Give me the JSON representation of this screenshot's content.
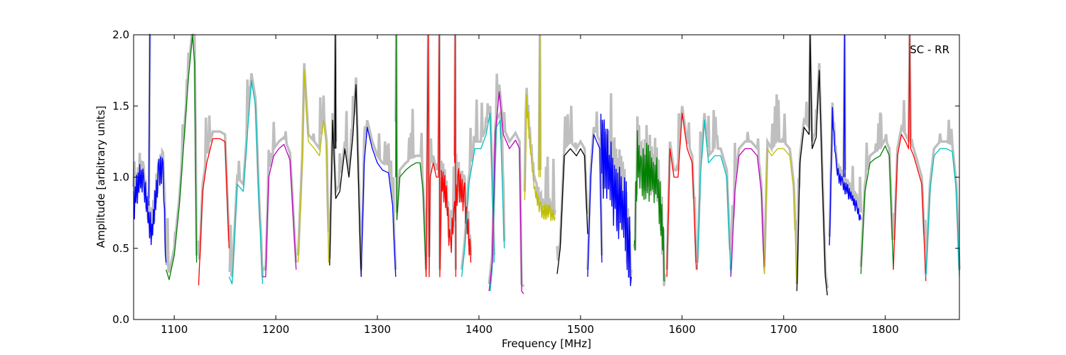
{
  "chart_data": {
    "type": "line",
    "annotation": "SC - RR",
    "xlabel": "Frequency [MHz]",
    "ylabel": "Amplitude [arbitrary units]",
    "xlim": [
      1060,
      1873
    ],
    "ylim": [
      0.0,
      2.0
    ],
    "grid": false,
    "x_ticks": [
      1100,
      1200,
      1300,
      1400,
      1500,
      1600,
      1700,
      1800
    ],
    "x_tick_labels": [
      "1100",
      "1200",
      "1300",
      "1400",
      "1500",
      "1600",
      "1700",
      "1800"
    ],
    "y_ticks": [
      0.0,
      0.5,
      1.0,
      1.5,
      2.0
    ],
    "y_tick_labels": [
      "0.0",
      "0.5",
      "1.0",
      "1.5",
      "2.0"
    ],
    "colors": {
      "blue": "#0000ff",
      "green": "#008000",
      "red": "#ff0000",
      "cyan": "#00bfbf",
      "magenta": "#bf00bf",
      "yellow": "#bfbf00",
      "black": "#000000",
      "gray": "#bfbfbf"
    },
    "series": [
      {
        "color": "blue",
        "noise": 0.12,
        "x": [
          1060,
          1063,
          1066,
          1070,
          1075,
          1078,
          1081,
          1085,
          1089,
          1092
        ],
        "y": [
          0.8,
          0.9,
          1.03,
          0.95,
          0.7,
          0.62,
          0.8,
          1.02,
          1.05,
          0.4
        ]
      },
      {
        "color": "blue",
        "x": [
          1075,
          1076,
          1076.5
        ],
        "y": [
          0.8,
          2.0,
          2.0
        ]
      },
      {
        "color": "green",
        "x": [
          1092,
          1095,
          1100,
          1105,
          1110,
          1114,
          1118,
          1120,
          1122
        ],
        "y": [
          0.35,
          0.28,
          0.45,
          0.8,
          1.3,
          1.7,
          2.0,
          1.8,
          0.4
        ]
      },
      {
        "color": "red",
        "x": [
          1124,
          1128,
          1132,
          1138,
          1145,
          1150,
          1154
        ],
        "y": [
          0.24,
          0.9,
          1.1,
          1.27,
          1.27,
          1.25,
          0.5
        ]
      },
      {
        "color": "cyan",
        "x": [
          1154,
          1157,
          1162,
          1168,
          1172,
          1176,
          1180,
          1183,
          1187
        ],
        "y": [
          0.3,
          0.25,
          0.95,
          0.9,
          1.3,
          1.68,
          1.5,
          0.9,
          0.25
        ]
      },
      {
        "color": "magenta",
        "x": [
          1187,
          1190,
          1193,
          1198,
          1203,
          1208,
          1214,
          1220
        ],
        "y": [
          0.3,
          0.3,
          1.0,
          1.15,
          1.2,
          1.23,
          1.12,
          0.35
        ]
      },
      {
        "color": "yellow",
        "x": [
          1222,
          1226,
          1228,
          1232,
          1238,
          1243,
          1247,
          1250,
          1252
        ],
        "y": [
          0.4,
          1.1,
          1.75,
          1.25,
          1.2,
          1.15,
          1.4,
          1.2,
          0.4
        ]
      },
      {
        "color": "black",
        "x": [
          1253,
          1256,
          1259,
          1263,
          1268,
          1272,
          1276,
          1279,
          1282,
          1284
        ],
        "y": [
          0.38,
          1.4,
          0.85,
          0.9,
          1.2,
          1.0,
          1.3,
          1.65,
          0.8,
          0.3
        ]
      },
      {
        "color": "black",
        "x": [
          1258,
          1258.6,
          1259.2
        ],
        "y": [
          1.2,
          2.0,
          1.2
        ]
      },
      {
        "color": "blue",
        "x": [
          1284,
          1287,
          1290,
          1295,
          1300,
          1305,
          1311,
          1315,
          1318
        ],
        "y": [
          0.3,
          1.1,
          1.35,
          1.2,
          1.1,
          1.05,
          1.03,
          0.8,
          0.3
        ]
      },
      {
        "color": "green",
        "x": [
          1318,
          1318.6,
          1319.2,
          1322,
          1328,
          1333,
          1338,
          1342,
          1345,
          1348
        ],
        "y": [
          1.0,
          2.0,
          0.7,
          1.0,
          1.05,
          1.08,
          1.1,
          1.1,
          0.9,
          0.3
        ]
      },
      {
        "color": "red",
        "x": [
          1348,
          1350,
          1351,
          1352,
          1355,
          1358,
          1360,
          1361,
          1361.5,
          1363
        ],
        "y": [
          0.3,
          2.0,
          0.3,
          1.0,
          1.1,
          1.0,
          1.0,
          2.0,
          0.3,
          1.0
        ]
      },
      {
        "color": "red",
        "noise": 0.12,
        "x": [
          1363,
          1368,
          1372,
          1376,
          1380,
          1386,
          1392
        ],
        "y": [
          1.0,
          0.85,
          0.5,
          0.75,
          0.95,
          0.85,
          0.4
        ]
      },
      {
        "color": "red",
        "x": [
          1376,
          1376.6,
          1377.2
        ],
        "y": [
          1.1,
          2.0,
          0.3
        ]
      },
      {
        "color": "cyan",
        "x": [
          1383,
          1386,
          1390,
          1396,
          1402,
          1407,
          1411,
          1413,
          1415
        ],
        "y": [
          0.3,
          0.5,
          0.95,
          1.2,
          1.2,
          1.3,
          1.45,
          1.0,
          0.4
        ]
      },
      {
        "color": "cyan",
        "x": [
          1411,
          1413,
          1417,
          1421,
          1425
        ],
        "y": [
          0.2,
          0.35,
          1.35,
          1.4,
          0.5
        ]
      },
      {
        "color": "magenta",
        "x": [
          1410,
          1413,
          1416,
          1420,
          1424,
          1430,
          1436,
          1440,
          1442,
          1444
        ],
        "y": [
          0.2,
          0.4,
          1.3,
          1.6,
          1.3,
          1.2,
          1.26,
          1.2,
          0.2,
          0.18
        ]
      },
      {
        "color": "yellow",
        "noise": 0.06,
        "x": [
          1445,
          1447,
          1450,
          1455,
          1461,
          1466,
          1470,
          1475
        ],
        "y": [
          0.8,
          1.55,
          1.25,
          0.9,
          0.78,
          0.75,
          0.75,
          0.72
        ]
      },
      {
        "color": "yellow",
        "x": [
          1459,
          1460,
          1460.5
        ],
        "y": [
          1.0,
          2.0,
          1.0
        ]
      },
      {
        "color": "black",
        "x": [
          1477,
          1480,
          1484,
          1490,
          1496,
          1500,
          1504,
          1507
        ],
        "y": [
          0.32,
          0.5,
          1.15,
          1.2,
          1.15,
          1.2,
          1.15,
          0.6
        ]
      },
      {
        "color": "blue",
        "x": [
          1507,
          1510,
          1513,
          1516,
          1519,
          1521
        ],
        "y": [
          0.3,
          1.0,
          1.3,
          1.25,
          1.2,
          0.4
        ]
      },
      {
        "color": "blue",
        "noise": 0.3,
        "x": [
          1520,
          1525,
          1530,
          1535,
          1540,
          1545,
          1550
        ],
        "y": [
          1.2,
          1.1,
          1.0,
          0.9,
          0.8,
          0.7,
          0.3
        ]
      },
      {
        "color": "green",
        "noise": 0.2,
        "x": [
          1553,
          1556,
          1560,
          1565,
          1570,
          1575,
          1580,
          1583
        ],
        "y": [
          0.4,
          1.2,
          1.0,
          1.05,
          1.0,
          1.0,
          0.7,
          0.27
        ]
      },
      {
        "color": "red",
        "x": [
          1585,
          1588,
          1592,
          1596,
          1600,
          1605,
          1610,
          1614
        ],
        "y": [
          0.3,
          1.2,
          1.0,
          1.0,
          1.45,
          1.2,
          1.1,
          0.35
        ]
      },
      {
        "color": "cyan",
        "x": [
          1615,
          1618,
          1622,
          1626,
          1632,
          1638,
          1644,
          1648
        ],
        "y": [
          0.35,
          1.0,
          1.4,
          1.1,
          1.15,
          1.15,
          1.0,
          0.3
        ]
      },
      {
        "color": "magenta",
        "x": [
          1648,
          1652,
          1656,
          1662,
          1668,
          1674,
          1678,
          1681
        ],
        "y": [
          0.3,
          0.9,
          1.15,
          1.2,
          1.2,
          1.15,
          0.9,
          0.32
        ]
      },
      {
        "color": "yellow",
        "x": [
          1681,
          1684,
          1688,
          1694,
          1700,
          1706,
          1710,
          1713
        ],
        "y": [
          0.32,
          1.2,
          1.15,
          1.2,
          1.2,
          1.15,
          0.9,
          0.25
        ]
      },
      {
        "color": "black",
        "x": [
          1713,
          1716,
          1720,
          1725,
          1726,
          1728,
          1732,
          1735,
          1738,
          1741,
          1743
        ],
        "y": [
          0.2,
          1.1,
          1.35,
          1.3,
          2.0,
          1.2,
          1.28,
          1.75,
          1.0,
          0.3,
          0.17
        ]
      },
      {
        "color": "blue",
        "noise": 0.05,
        "x": [
          1745,
          1748,
          1752,
          1758,
          1763,
          1768,
          1772,
          1776
        ],
        "y": [
          0.5,
          1.45,
          1.05,
          0.95,
          0.9,
          0.85,
          0.78,
          0.7
        ]
      },
      {
        "color": "blue",
        "x": [
          1759,
          1760,
          1760.5
        ],
        "y": [
          1.0,
          2.0,
          1.0
        ]
      },
      {
        "color": "green",
        "x": [
          1776,
          1780,
          1785,
          1790,
          1795,
          1800,
          1804,
          1808
        ],
        "y": [
          0.32,
          0.9,
          1.1,
          1.13,
          1.15,
          1.22,
          1.15,
          0.35
        ]
      },
      {
        "color": "red",
        "x": [
          1808,
          1812,
          1816,
          1820,
          1823,
          1824,
          1825,
          1828,
          1832,
          1836,
          1840
        ],
        "y": [
          0.35,
          1.15,
          1.3,
          1.25,
          1.2,
          2.0,
          1.2,
          1.15,
          1.05,
          0.95,
          0.27
        ]
      },
      {
        "color": "cyan",
        "x": [
          1840,
          1844,
          1848,
          1854,
          1860,
          1866,
          1870,
          1873
        ],
        "y": [
          0.3,
          0.9,
          1.15,
          1.2,
          1.2,
          1.18,
          0.9,
          0.3
        ]
      }
    ]
  }
}
